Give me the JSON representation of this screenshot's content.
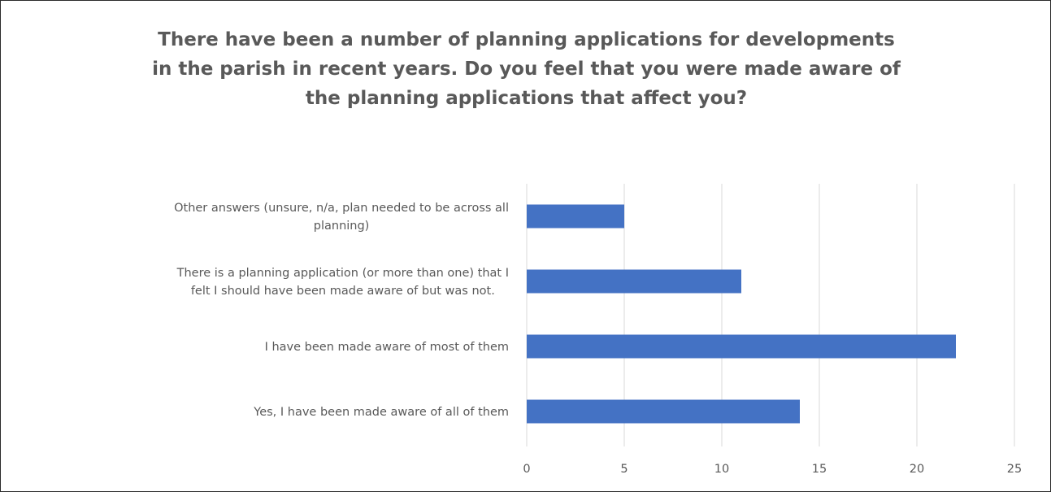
{
  "chart_data": {
    "type": "bar",
    "orientation": "horizontal",
    "title_lines": [
      "There have been a number of planning applications for developments",
      "in the parish in recent years. Do you feel that you were made aware of",
      "the planning applications that affect you?"
    ],
    "categories": [
      {
        "lines": [
          "Other answers  (unsure, n/a, plan needed to be across all",
          "planning)"
        ]
      },
      {
        "lines": [
          "There is a planning application (or more than one) that I",
          "felt I should have been made aware of but was not."
        ]
      },
      {
        "lines": [
          "I have been made aware of most of them"
        ]
      },
      {
        "lines": [
          "Yes, I have been made aware of all of them"
        ]
      }
    ],
    "values": [
      5,
      11,
      22,
      14
    ],
    "xlim": [
      0,
      25
    ],
    "xticks": [
      "0",
      "5",
      "10",
      "15",
      "20",
      "25"
    ],
    "grid": true,
    "legend": "none",
    "bar_color": "#4472c4",
    "grid_color": "#d9d9d9",
    "text_color": "#595959"
  }
}
